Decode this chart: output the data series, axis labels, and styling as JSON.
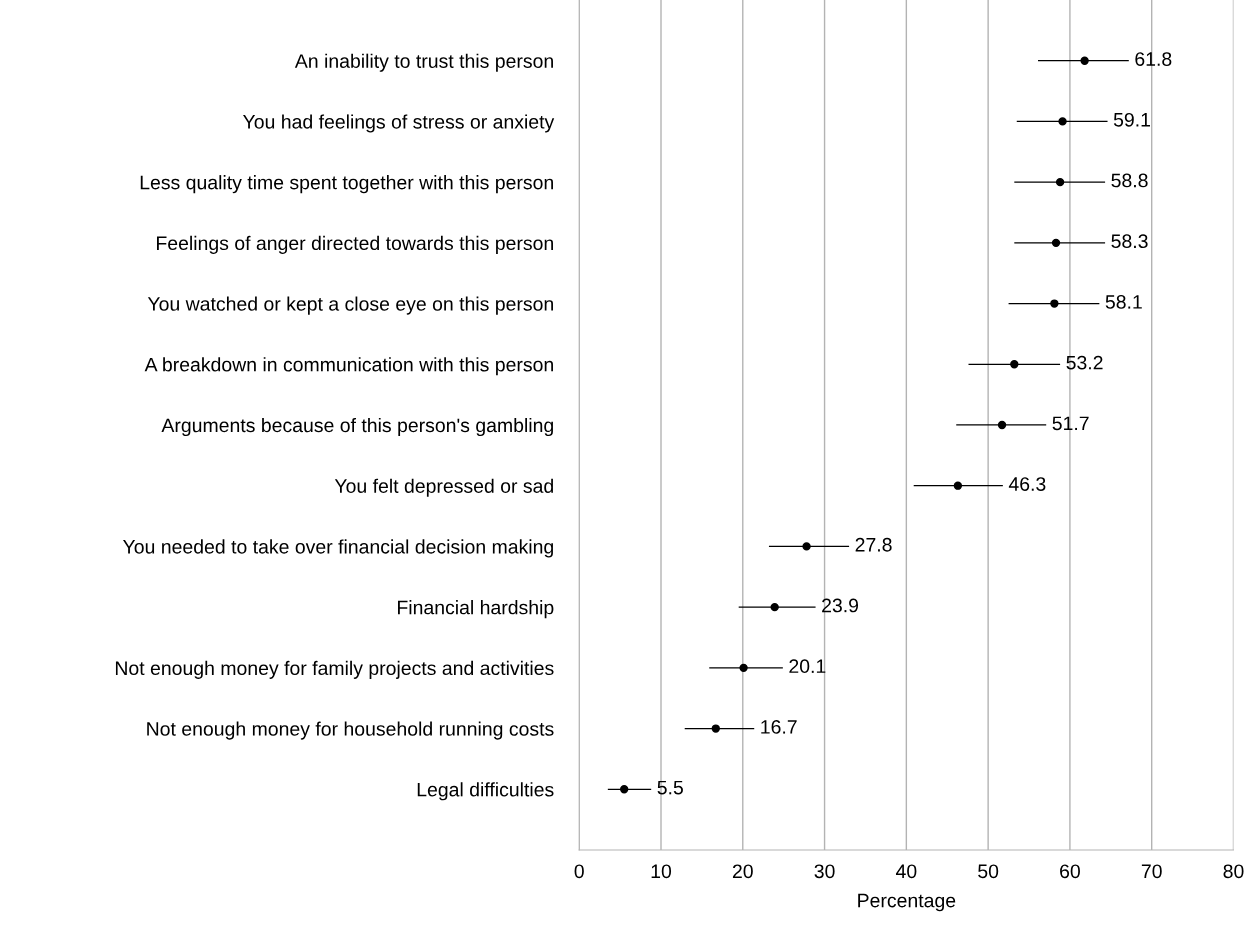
{
  "chart_data": {
    "type": "scatter",
    "orientation": "horizontal",
    "xlabel": "Percentage",
    "categories": [
      "An inability to trust this person",
      "You had feelings of stress or anxiety",
      "Less quality time spent together with this person",
      "Feelings of anger directed towards this person",
      "You watched or kept a close eye on this person",
      "A breakdown in communication with this person",
      "Arguments because of this person's gambling",
      "You felt depressed or sad",
      "You needed to take over financial decision making",
      "Financial hardship",
      "Not enough money for family projects and activities",
      "Not enough money for household running costs",
      "Legal difficulties"
    ],
    "values": [
      61.8,
      59.1,
      58.8,
      58.3,
      58.1,
      53.2,
      51.7,
      46.3,
      27.8,
      23.9,
      20.1,
      16.7,
      5.5
    ],
    "errors": [
      [
        56.1,
        67.2
      ],
      [
        53.5,
        64.6
      ],
      [
        53.2,
        64.3
      ],
      [
        53.2,
        64.3
      ],
      [
        52.5,
        63.6
      ],
      [
        47.6,
        58.8
      ],
      [
        46.1,
        57.1
      ],
      [
        40.9,
        51.8
      ],
      [
        23.2,
        33.0
      ],
      [
        19.5,
        28.9
      ],
      [
        15.9,
        24.9
      ],
      [
        12.9,
        21.4
      ],
      [
        3.5,
        8.8
      ]
    ],
    "color": "#000000",
    "marker": "circle",
    "data_labels": true,
    "grid": "x",
    "xlim": [
      0,
      80
    ],
    "xticks": [
      0,
      10,
      20,
      30,
      40,
      50,
      60,
      70,
      80
    ]
  }
}
